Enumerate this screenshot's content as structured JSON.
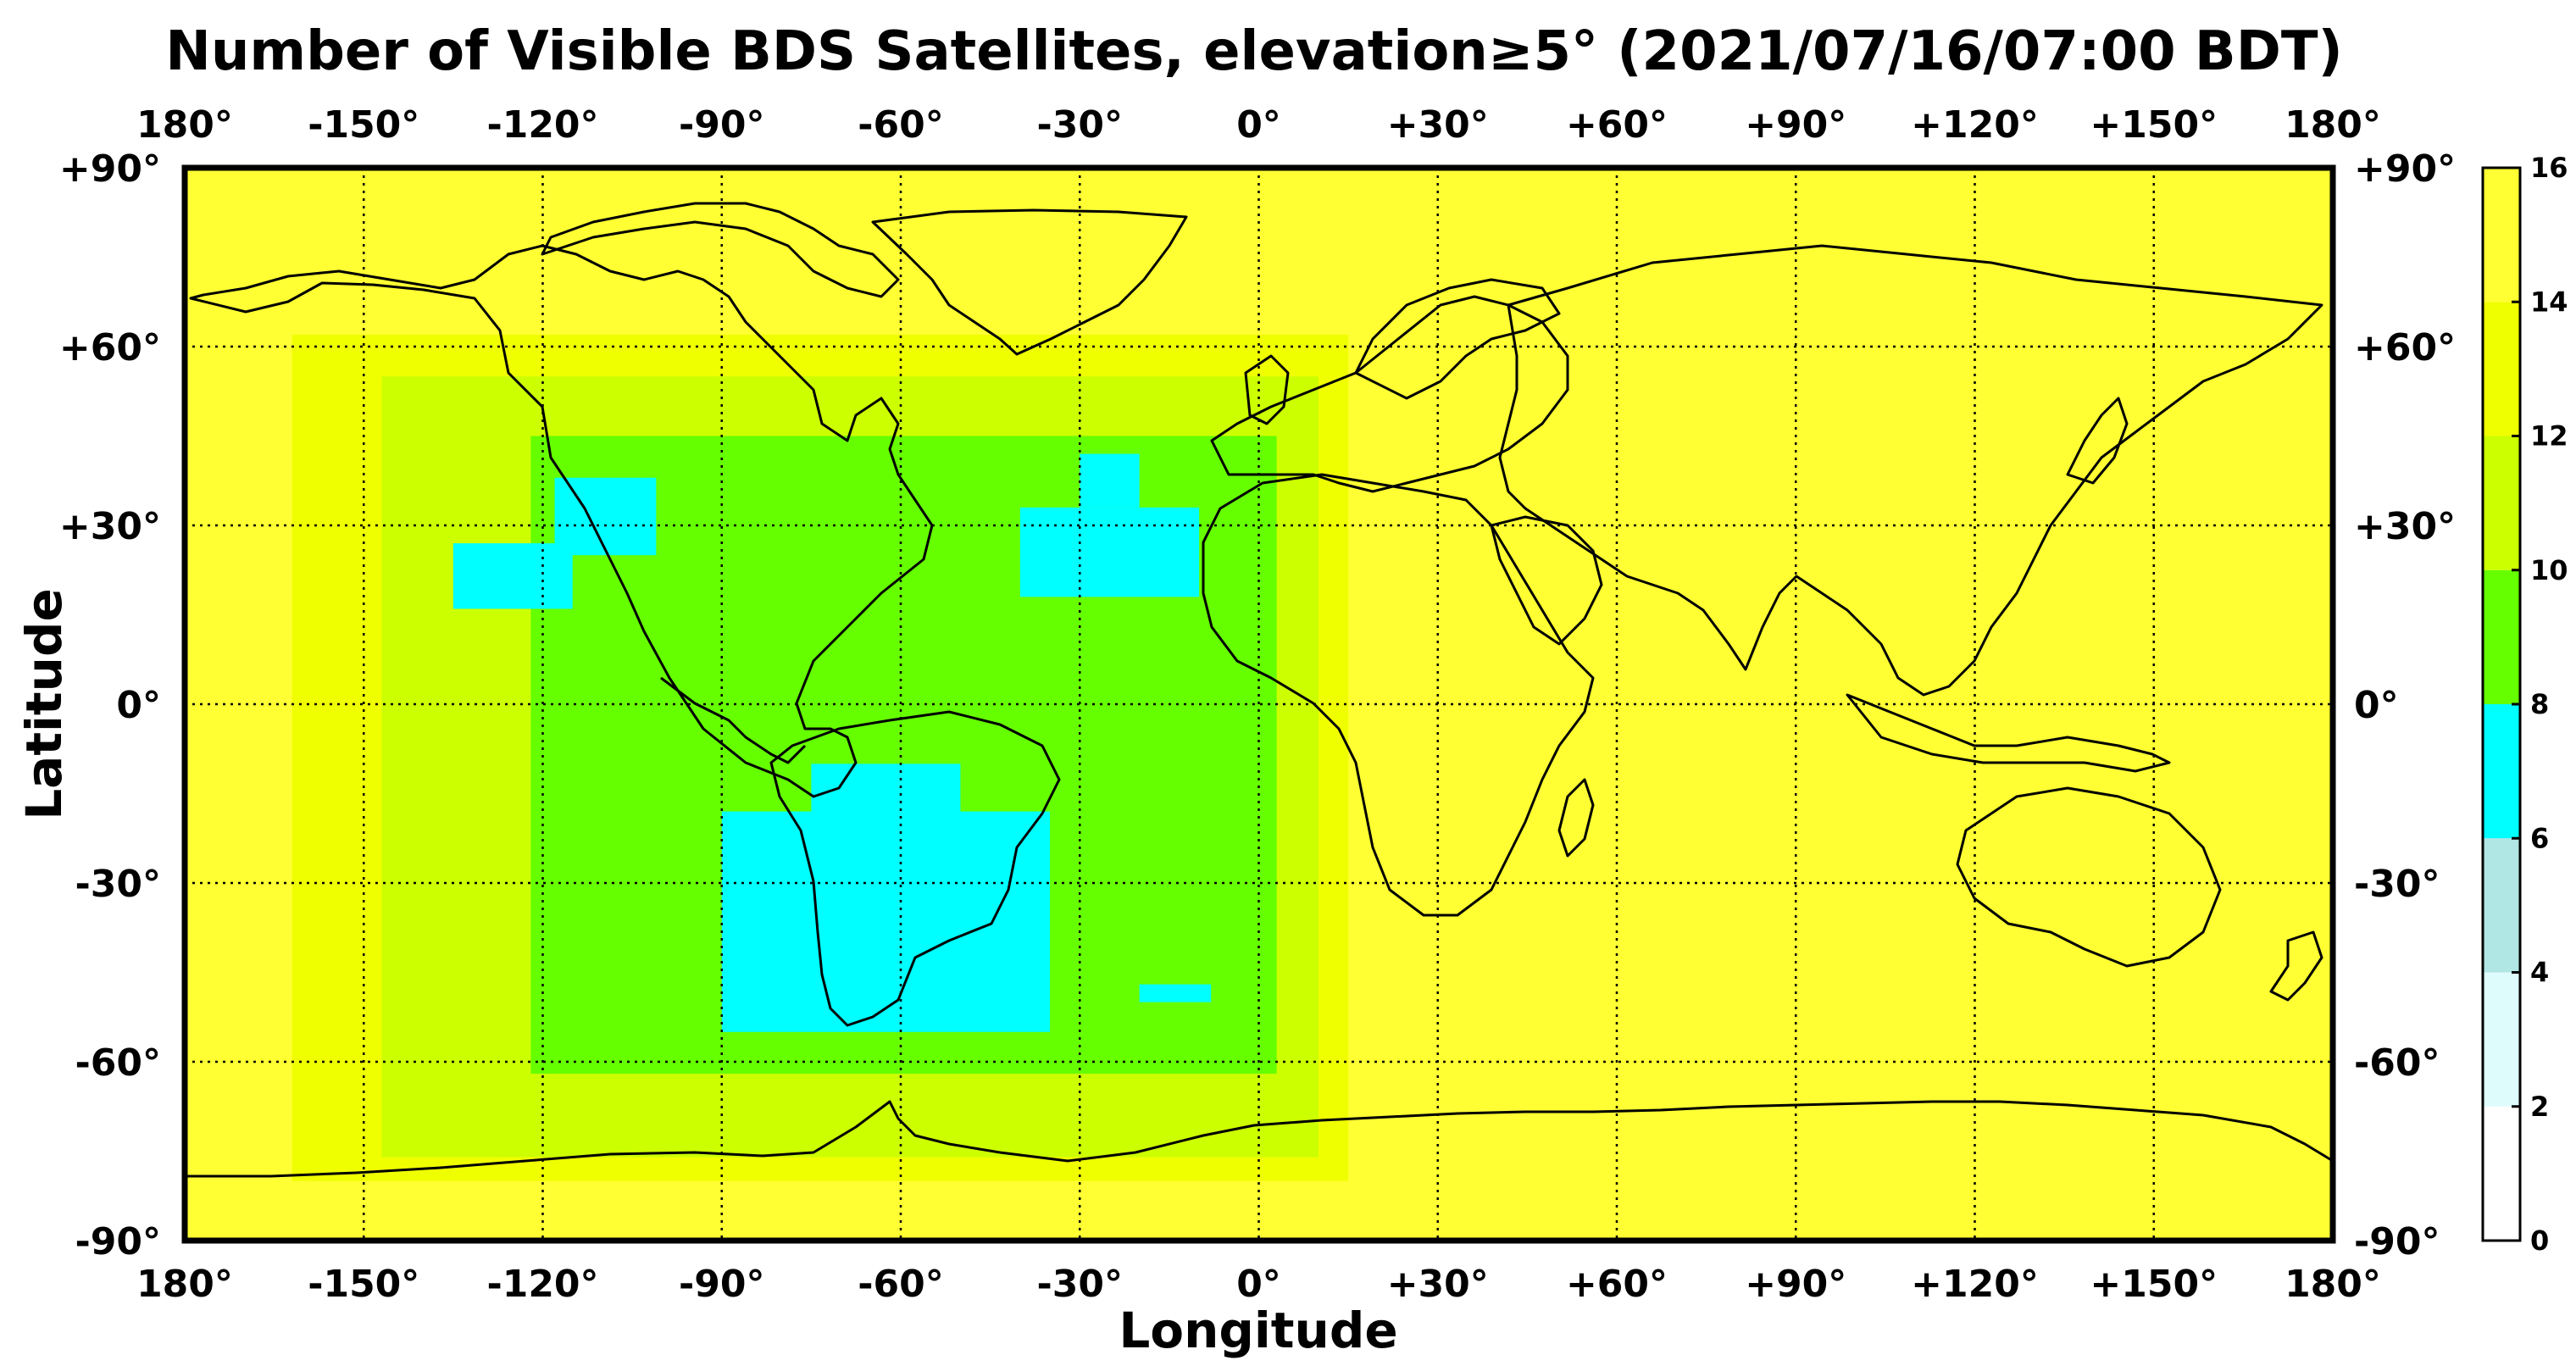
{
  "title": "Number of Visible BDS Satellites, elevation≥5° (2021/07/16/07:00 BDT)",
  "x_axis": {
    "label": "Longitude",
    "ticks": [
      "180°",
      "-150°",
      "-120°",
      "-90°",
      "-60°",
      "-30°",
      "0°",
      "+30°",
      "+60°",
      "+90°",
      "+120°",
      "+150°",
      "180°"
    ],
    "values": [
      -180,
      -150,
      -120,
      -90,
      -60,
      -30,
      0,
      30,
      60,
      90,
      120,
      150,
      180
    ],
    "range": [
      -180,
      180
    ]
  },
  "y_axis": {
    "label": "Latitude",
    "ticks": [
      "+90°",
      "+60°",
      "+30°",
      "0°",
      "-30°",
      "-60°",
      "-90°"
    ],
    "values": [
      90,
      60,
      30,
      0,
      -30,
      -60,
      -90
    ],
    "range": [
      -90,
      90
    ]
  },
  "colorbar": {
    "ticks": [
      "16",
      "14",
      "12",
      "10",
      "8",
      "6",
      "4",
      "2",
      "0"
    ],
    "values": [
      16,
      14,
      12,
      10,
      8,
      6,
      4,
      2,
      0
    ],
    "bands": [
      {
        "from": 0,
        "to": 2,
        "color": "#ffffff"
      },
      {
        "from": 2,
        "to": 4,
        "color": "#dffcfc"
      },
      {
        "from": 4,
        "to": 6,
        "color": "#b0e6e4"
      },
      {
        "from": 6,
        "to": 8,
        "color": "#00ffff"
      },
      {
        "from": 8,
        "to": 10,
        "color": "#66ff00"
      },
      {
        "from": 10,
        "to": 12,
        "color": "#ccff00"
      },
      {
        "from": 12,
        "to": 14,
        "color": "#f0ff00"
      },
      {
        "from": 14,
        "to": 16,
        "color": "#ffff33"
      }
    ]
  },
  "chart_data": {
    "type": "heatmap",
    "title": "Number of Visible BDS Satellites, elevation≥5° (2021/07/16/07:00 BDT)",
    "xlabel": "Longitude",
    "ylabel": "Latitude",
    "xlim": [
      -180,
      180
    ],
    "ylim": [
      -90,
      90
    ],
    "grid": true,
    "colorbar_range": [
      0,
      16
    ],
    "background_value": 15,
    "regions": [
      {
        "value": 13,
        "lon": [
          -162,
          15
        ],
        "lat": [
          -80,
          62
        ]
      },
      {
        "value": 11,
        "lon": [
          -147,
          10
        ],
        "lat": [
          -76,
          55
        ]
      },
      {
        "value": 9,
        "lon": [
          -122,
          3
        ],
        "lat": [
          -62,
          45
        ]
      },
      {
        "value": 7,
        "lon": [
          -135,
          -115
        ],
        "lat": [
          16,
          27
        ]
      },
      {
        "value": 7,
        "lon": [
          -118,
          -101
        ],
        "lat": [
          25,
          38
        ]
      },
      {
        "value": 7,
        "lon": [
          -40,
          -10
        ],
        "lat": [
          18,
          33
        ]
      },
      {
        "value": 7,
        "lon": [
          -30,
          -20
        ],
        "lat": [
          33,
          42
        ]
      },
      {
        "value": 7,
        "lon": [
          -90,
          -35
        ],
        "lat": [
          -55,
          -18
        ]
      },
      {
        "value": 7,
        "lon": [
          -75,
          -50
        ],
        "lat": [
          -20,
          -10
        ]
      },
      {
        "value": 7,
        "lon": [
          -20,
          -8
        ],
        "lat": [
          -50,
          -47
        ]
      }
    ]
  }
}
